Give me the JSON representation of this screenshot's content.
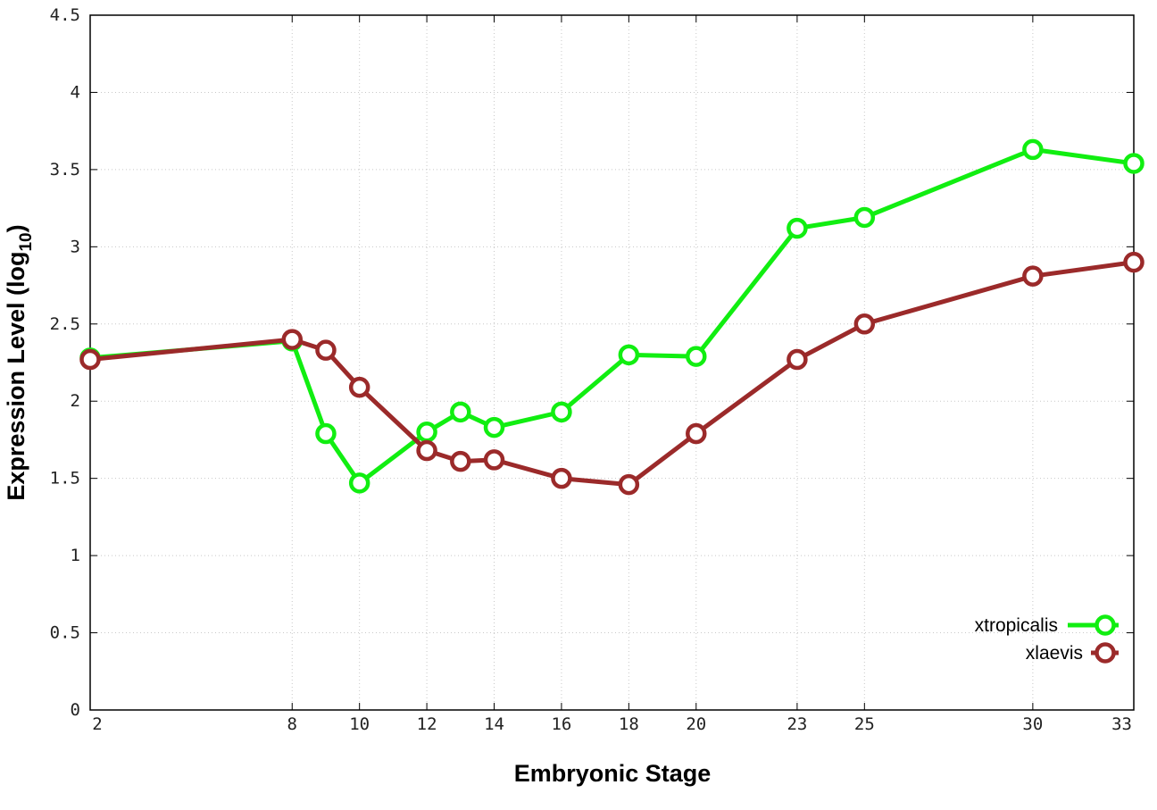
{
  "chart_data": {
    "type": "line",
    "xlabel": "Embryonic Stage",
    "ylabel": "Expression Level (log",
    "ylabel_sub": "10",
    "ylabel_close": ")",
    "x": [
      2,
      8,
      9,
      10,
      12,
      13,
      14,
      16,
      18,
      20,
      23,
      25,
      30,
      33
    ],
    "x_ticks": [
      2,
      8,
      10,
      12,
      14,
      16,
      18,
      20,
      23,
      25,
      30,
      33
    ],
    "xlim": [
      2,
      33
    ],
    "y_ticks": [
      "0",
      "0.5",
      "1",
      "1.5",
      "2",
      "2.5",
      "3",
      "3.5",
      "4",
      "4.5"
    ],
    "ylim": [
      0,
      4.5
    ],
    "grid": true,
    "legend_position": "bottom-right",
    "series": [
      {
        "name": "xtropicalis",
        "color": "#11ee11",
        "values": [
          2.28,
          2.39,
          1.79,
          1.47,
          1.8,
          1.93,
          1.83,
          1.93,
          2.3,
          2.29,
          3.12,
          3.19,
          3.63,
          3.54
        ]
      },
      {
        "name": "xlaevis",
        "color": "#9b2a2a",
        "values": [
          2.27,
          2.4,
          2.33,
          2.09,
          1.68,
          1.61,
          1.62,
          1.5,
          1.46,
          1.79,
          2.27,
          2.5,
          2.81,
          2.9
        ]
      }
    ]
  }
}
